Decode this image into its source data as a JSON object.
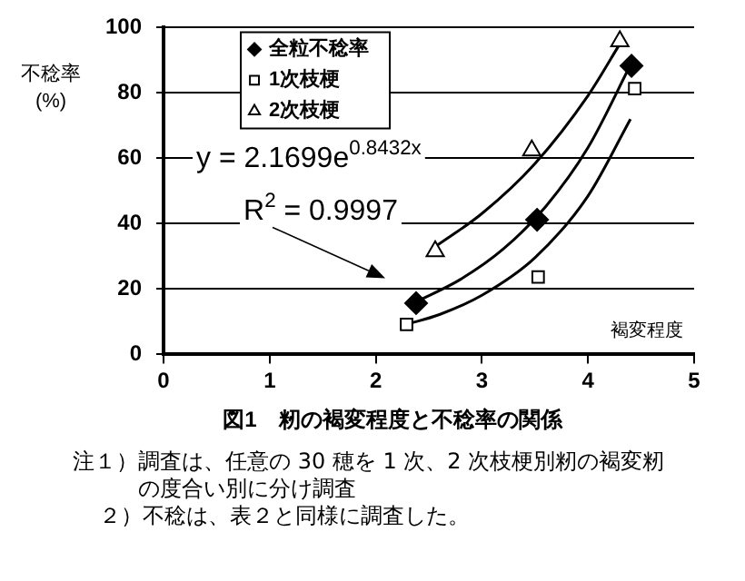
{
  "chart_data": {
    "type": "scatter",
    "title": "図1　籾の褐変程度と不稔率の関係",
    "xlabel": "褐変程度",
    "ylabel": "不稔率\n(%)",
    "xlim": [
      0,
      5
    ],
    "xticks": [
      0,
      1,
      2,
      3,
      4,
      5
    ],
    "ylim": [
      0,
      100
    ],
    "yticks": [
      0,
      20,
      40,
      60,
      80,
      100
    ],
    "grid": "y",
    "legend": "top left",
    "series": [
      {
        "name": "全粒不稔率",
        "type": "scatter",
        "marker": "diamond",
        "color": "#000000",
        "x": [
          2.38,
          3.52,
          4.41
        ],
        "values": [
          15.7,
          41.2,
          88.3
        ]
      },
      {
        "name": "1次枝梗",
        "type": "scatter",
        "marker": "square",
        "color": "#000000",
        "x": [
          2.29,
          3.53,
          4.44
        ],
        "values": [
          9.2,
          23.7,
          81.3
        ]
      },
      {
        "name": "2次枝梗",
        "type": "scatter",
        "marker": "triangle",
        "color": "#000000",
        "x": [
          2.56,
          3.47,
          4.3
        ],
        "values": [
          31.6,
          62.4,
          95.8
        ]
      },
      {
        "type": "line",
        "marker": "none",
        "color": "#000000",
        "x": [
          2.29,
          2.6,
          3.0,
          3.5,
          4.0,
          4.4
        ],
        "values": [
          9.2,
          12.2,
          18.1,
          29.6,
          48.5,
          72
        ]
      },
      {
        "type": "line",
        "marker": "none",
        "color": "#000000",
        "x": [
          2.38,
          2.8,
          3.2,
          3.6,
          4.0,
          4.41
        ],
        "values": [
          16.1,
          23,
          32.2,
          45.2,
          63.3,
          89.2
        ]
      },
      {
        "type": "line",
        "marker": "none",
        "color": "#000000",
        "x": [
          2.56,
          3.0,
          3.5,
          4.0,
          4.3
        ],
        "values": [
          33,
          43.1,
          58.4,
          79.2,
          95
        ]
      }
    ],
    "annotations": [
      "y = 2.1699e$^{0.8432x}$",
      "R$^{2}$ = 0.9997",
      "注１）調査は、任意の 30 穂を 1 次、2 次枝梗別籾の褐変籾の度合い別に分け調査",
      "２）不稔は、表２と同様に調査した。"
    ]
  }
}
